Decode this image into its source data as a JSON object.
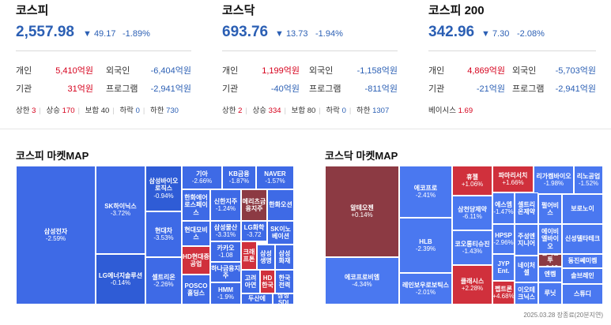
{
  "indices": [
    {
      "title": "코스피",
      "value": "2,557.98",
      "change": "▼ 49.17",
      "pct": "-1.89%",
      "rows": [
        {
          "l1": "개인",
          "v1": "5,410억원",
          "l2": "외국인",
          "v2": "-6,404억원"
        },
        {
          "l1": "기관",
          "v1": "31억원",
          "l2": "프로그램",
          "v2": "-2,941억원"
        }
      ],
      "stats": [
        {
          "label": "상한",
          "value": "3"
        },
        {
          "label": "상승",
          "value": "170"
        },
        {
          "label": "보합",
          "value": "40"
        },
        {
          "label": "하락",
          "value": "0"
        },
        {
          "label": "하한",
          "value": "730"
        }
      ]
    },
    {
      "title": "코스닥",
      "value": "693.76",
      "change": "▼ 13.73",
      "pct": "-1.94%",
      "rows": [
        {
          "l1": "개인",
          "v1": "1,199억원",
          "l2": "외국인",
          "v2": "-1,158억원"
        },
        {
          "l1": "기관",
          "v1": "-40억원",
          "l2": "프로그램",
          "v2": "-811억원"
        }
      ],
      "stats": [
        {
          "label": "상한",
          "value": "2"
        },
        {
          "label": "상승",
          "value": "334"
        },
        {
          "label": "보합",
          "value": "80"
        },
        {
          "label": "하락",
          "value": "0"
        },
        {
          "label": "하한",
          "value": "1307"
        }
      ]
    },
    {
      "title": "코스피 200",
      "value": "342.96",
      "change": "▼ 7.30",
      "pct": "-2.08%",
      "rows": [
        {
          "l1": "개인",
          "v1": "4,869억원",
          "l2": "외국인",
          "v2": "-5,703억원"
        },
        {
          "l1": "기관",
          "v1": "-21억원",
          "l2": "프로그램",
          "v2": "-2,941억원"
        }
      ],
      "basis_label": "베이시스",
      "basis_value": "1.69"
    }
  ],
  "kospi_map": {
    "title": "코스피 마켓MAP",
    "cells": [
      {
        "n": "삼성전자",
        "p": "-2.59%",
        "c": "b2"
      },
      {
        "n": "SK하이닉스",
        "p": "-3.72%",
        "c": "b2"
      },
      {
        "n": "LG에너지솔루션",
        "p": "-0.14%",
        "c": "b1"
      },
      {
        "n": "삼성바이오로직스",
        "p": "-0.94%",
        "c": "b1"
      },
      {
        "n": "현대차",
        "p": "-3.53%",
        "c": "b2"
      },
      {
        "n": "셀트리온",
        "p": "-2.26%",
        "c": "b2"
      },
      {
        "n": "기아",
        "p": "-2.66%",
        "c": "b2"
      },
      {
        "n": "KB금융",
        "p": "-1.87%",
        "c": "b2"
      },
      {
        "n": "NAVER",
        "p": "-1.57%",
        "c": "b2"
      },
      {
        "n": "한화에어로스페이스",
        "p": "",
        "c": "b2"
      },
      {
        "n": "신한지주",
        "p": "-1.24%",
        "c": "b2"
      },
      {
        "n": "메리츠금융지주",
        "p": "",
        "c": "r2"
      },
      {
        "n": "한화오션",
        "p": "",
        "c": "b2"
      },
      {
        "n": "현대모비스",
        "p": "",
        "c": "b2"
      },
      {
        "n": "삼성물산",
        "p": "-3.31%",
        "c": "b2"
      },
      {
        "n": "LG화학",
        "p": "-3.72",
        "c": "b2"
      },
      {
        "n": "SK이노베이션",
        "p": "",
        "c": "b2"
      },
      {
        "n": "HD현대중공업",
        "p": "",
        "c": "r1"
      },
      {
        "n": "카카오",
        "p": "-1.08",
        "c": "b2"
      },
      {
        "n": "크래프톤",
        "p": "",
        "c": "r1"
      },
      {
        "n": "삼성생명",
        "p": "",
        "c": "b2"
      },
      {
        "n": "삼성화재",
        "p": "",
        "c": "b2"
      },
      {
        "n": "POSCO홀딩스",
        "p": "",
        "c": "b2"
      },
      {
        "n": "하나금융지주",
        "p": "",
        "c": "b2"
      },
      {
        "n": "HMM",
        "p": "-1.9%",
        "c": "b2"
      },
      {
        "n": "고려아연",
        "p": "",
        "c": "b2"
      },
      {
        "n": "HD한국",
        "p": "",
        "c": "r1"
      },
      {
        "n": "한국전력",
        "p": "",
        "c": "b2"
      },
      {
        "n": "두산에",
        "p": "",
        "c": "b2"
      },
      {
        "n": "삼성SDI",
        "p": "",
        "c": "b2"
      }
    ]
  },
  "kosdaq_map": {
    "title": "코스닥 마켓MAP",
    "cells": [
      {
        "n": "알테오젠",
        "p": "+0.14%",
        "c": "r2"
      },
      {
        "n": "에코프로비엠",
        "p": "-4.34%",
        "c": "b3"
      },
      {
        "n": "에코프로",
        "p": "-2.41%",
        "c": "b3"
      },
      {
        "n": "HLB",
        "p": "-2.39%",
        "c": "b3"
      },
      {
        "n": "레인보우로보틱스",
        "p": "-2.01%",
        "c": "b3"
      },
      {
        "n": "휴젤",
        "p": "+1.06%",
        "c": "r1"
      },
      {
        "n": "삼천당제약",
        "p": "-6.11%",
        "c": "b3"
      },
      {
        "n": "코오롱티슈진",
        "p": "-1.43%",
        "c": "b3"
      },
      {
        "n": "클래시스",
        "p": "+2.28%",
        "c": "r1"
      },
      {
        "n": "파마리서치",
        "p": "+1.66%",
        "c": "r1"
      },
      {
        "n": "리가켐바이오",
        "p": "-1.98%",
        "c": "b3"
      },
      {
        "n": "리노공업",
        "p": "-1.52%",
        "c": "b3"
      },
      {
        "n": "에스엠",
        "p": "-1.47%",
        "c": "b3"
      },
      {
        "n": "셀트리온제약",
        "p": "",
        "c": "b3"
      },
      {
        "n": "펄어비스",
        "p": "",
        "c": "b3"
      },
      {
        "n": "보로노이",
        "p": "",
        "c": "b3"
      },
      {
        "n": "HPSP",
        "p": "-2.96%",
        "c": "b3"
      },
      {
        "n": "주성엔지니어",
        "p": "",
        "c": "b3"
      },
      {
        "n": "에이비엘바이오",
        "p": "",
        "c": "b3"
      },
      {
        "n": "신성델타테크",
        "p": "",
        "c": "b3"
      },
      {
        "n": "실리콘투",
        "p": "+0.19",
        "c": "r2"
      },
      {
        "n": "동진쎄미켐",
        "p": "",
        "c": "b3"
      },
      {
        "n": "JYP Ent.",
        "p": "",
        "c": "b3"
      },
      {
        "n": "네이처셀",
        "p": "",
        "c": "b3"
      },
      {
        "n": "엔켐",
        "p": "",
        "c": "b3"
      },
      {
        "n": "솔브레인",
        "p": "",
        "c": "b3"
      },
      {
        "n": "펩트론",
        "p": "+4.68%",
        "c": "r1"
      },
      {
        "n": "이오테크닉스",
        "p": "",
        "c": "b3"
      },
      {
        "n": "루닛",
        "p": "",
        "c": "b3"
      },
      {
        "n": "스튜디",
        "p": "",
        "c": "b3"
      }
    ]
  },
  "footer": "2025.03.28 장종료(20분지연)"
}
